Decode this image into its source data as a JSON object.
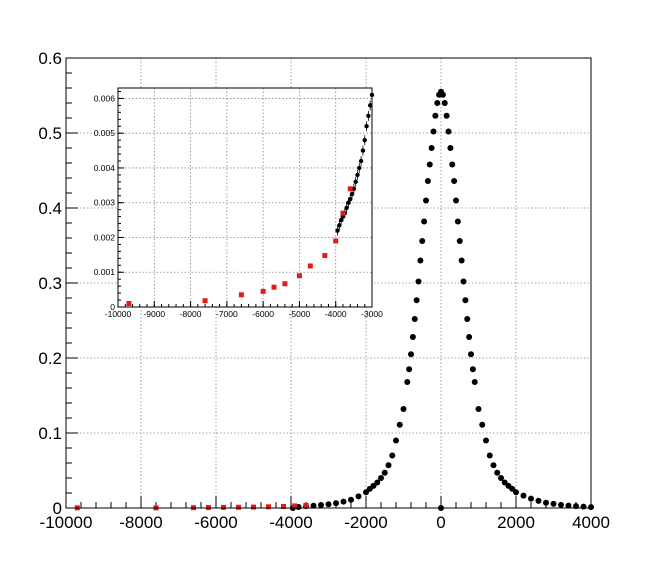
{
  "chart_data": [
    {
      "type": "scatter",
      "title": "",
      "xlabel": "",
      "ylabel": "",
      "xlim": [
        -10000,
        4000
      ],
      "ylim": [
        0,
        0.6
      ],
      "grid": true,
      "x_ticks": [
        -10000,
        -8000,
        -6000,
        -4000,
        -2000,
        0,
        2000,
        4000
      ],
      "x_tick_labels": [
        "-10000",
        "-8000",
        "-6000",
        "-4000",
        "-2000",
        "0",
        "2000",
        "4000"
      ],
      "y_ticks": [
        0,
        0.1,
        0.2,
        0.3,
        0.4,
        0.5,
        0.6
      ],
      "y_tick_labels": [
        "0",
        "0.1",
        "0.2",
        "0.3",
        "0.4",
        "0.5",
        "0.6"
      ],
      "peak": {
        "center": 0,
        "height": 0.555,
        "width": 900
      },
      "series": [
        {
          "color": "#000000",
          "marker": "circle",
          "points": [
            [
              -3950,
              0.0
            ],
            [
              -3800,
              0.0014
            ],
            [
              -3600,
              0.0025
            ],
            [
              -3400,
              0.003
            ],
            [
              -3200,
              0.004
            ],
            [
              -3000,
              0.005
            ],
            [
              -2800,
              0.0065
            ],
            [
              -2600,
              0.0085
            ],
            [
              -2400,
              0.011
            ],
            [
              -2200,
              0.0155
            ],
            [
              -2000,
              0.021
            ],
            [
              -1900,
              0.0255
            ],
            [
              -1800,
              0.0295
            ],
            [
              -1700,
              0.034
            ],
            [
              -1600,
              0.04
            ],
            [
              -1500,
              0.047
            ],
            [
              -1400,
              0.057
            ],
            [
              -1300,
              0.07
            ],
            [
              -1200,
              0.09
            ],
            [
              -1100,
              0.111
            ],
            [
              -1000,
              0.132
            ],
            [
              -900,
              0.168
            ],
            [
              -850,
              0.185
            ],
            [
              -800,
              0.205
            ],
            [
              -750,
              0.228
            ],
            [
              -700,
              0.252
            ],
            [
              -650,
              0.277
            ],
            [
              -600,
              0.302
            ],
            [
              -550,
              0.33
            ],
            [
              -500,
              0.356
            ],
            [
              -450,
              0.382
            ],
            [
              -400,
              0.41
            ],
            [
              -350,
              0.436
            ],
            [
              -300,
              0.458
            ],
            [
              -250,
              0.48
            ],
            [
              -200,
              0.502
            ],
            [
              -150,
              0.523
            ],
            [
              -100,
              0.54
            ],
            [
              -50,
              0.551
            ],
            [
              0,
              0.555
            ],
            [
              50,
              0.551
            ],
            [
              100,
              0.54
            ],
            [
              150,
              0.523
            ],
            [
              200,
              0.502
            ],
            [
              250,
              0.48
            ],
            [
              300,
              0.458
            ],
            [
              350,
              0.436
            ],
            [
              400,
              0.41
            ],
            [
              450,
              0.382
            ],
            [
              500,
              0.356
            ],
            [
              550,
              0.33
            ],
            [
              600,
              0.302
            ],
            [
              650,
              0.277
            ],
            [
              700,
              0.252
            ],
            [
              750,
              0.228
            ],
            [
              800,
              0.205
            ],
            [
              850,
              0.185
            ],
            [
              900,
              0.168
            ],
            [
              1000,
              0.132
            ],
            [
              1100,
              0.111
            ],
            [
              1200,
              0.09
            ],
            [
              1300,
              0.07
            ],
            [
              1400,
              0.057
            ],
            [
              1500,
              0.047
            ],
            [
              1600,
              0.04
            ],
            [
              1700,
              0.034
            ],
            [
              1800,
              0.0295
            ],
            [
              1900,
              0.0255
            ],
            [
              2000,
              0.021
            ],
            [
              2200,
              0.0165
            ],
            [
              2400,
              0.0125
            ],
            [
              2600,
              0.0095
            ],
            [
              2800,
              0.007
            ],
            [
              3000,
              0.0055
            ],
            [
              3200,
              0.0042
            ],
            [
              3400,
              0.0032
            ],
            [
              3600,
              0.0025
            ],
            [
              3800,
              0.0018
            ],
            [
              4000,
              0.0012
            ],
            [
              0,
              0.0
            ]
          ]
        },
        {
          "color": "#e41a1a",
          "marker": "square",
          "points": [
            [
              -9700,
              0.0002
            ],
            [
              -7600,
              0.0002
            ],
            [
              -6600,
              0.0004
            ],
            [
              -6200,
              0.0006
            ],
            [
              -5800,
              0.0008
            ],
            [
              -5400,
              0.001
            ],
            [
              -5000,
              0.0012
            ],
            [
              -4600,
              0.0016
            ],
            [
              -4200,
              0.002
            ],
            [
              -3900,
              0.0028
            ],
            [
              -3600,
              0.0035
            ]
          ]
        }
      ]
    },
    {
      "type": "scatter",
      "title": "",
      "xlabel": "",
      "ylabel": "",
      "xlim": [
        -10000,
        -3000
      ],
      "ylim": [
        0,
        0.0063
      ],
      "grid": true,
      "x_ticks": [
        -10000,
        -9000,
        -8000,
        -7000,
        -6000,
        -5000,
        -4000,
        -3000
      ],
      "x_tick_labels": [
        "-10000",
        "-9000",
        "-8000",
        "-7000",
        "-6000",
        "-5000",
        "-4000",
        "-3000"
      ],
      "y_ticks": [
        0,
        0.001,
        0.002,
        0.003,
        0.004,
        0.005,
        0.006
      ],
      "y_tick_labels": [
        "0",
        "0.001",
        "0.002",
        "0.003",
        "0.004",
        "0.005",
        "0.006"
      ],
      "series": [
        {
          "color": "#000000",
          "marker": "circle",
          "points": [
            [
              -3950,
              0.0022
            ],
            [
              -3900,
              0.00235
            ],
            [
              -3850,
              0.0025
            ],
            [
              -3800,
              0.0026
            ],
            [
              -3750,
              0.0027
            ],
            [
              -3700,
              0.00285
            ],
            [
              -3650,
              0.003
            ],
            [
              -3600,
              0.0031
            ],
            [
              -3550,
              0.00325
            ],
            [
              -3500,
              0.0034
            ],
            [
              -3450,
              0.0036
            ],
            [
              -3400,
              0.0038
            ],
            [
              -3350,
              0.004
            ],
            [
              -3300,
              0.0042
            ],
            [
              -3250,
              0.0045
            ],
            [
              -3200,
              0.0048
            ],
            [
              -3150,
              0.0052
            ],
            [
              -3100,
              0.0055
            ],
            [
              -3050,
              0.0058
            ],
            [
              -3000,
              0.0061
            ]
          ]
        },
        {
          "color": "#e41a1a",
          "marker": "square",
          "points": [
            [
              -9700,
              0.0001
            ],
            [
              -7600,
              0.00018
            ],
            [
              -6600,
              0.00035
            ],
            [
              -6000,
              0.00045
            ],
            [
              -5700,
              0.00057
            ],
            [
              -5400,
              0.00067
            ],
            [
              -5000,
              0.0009
            ],
            [
              -4700,
              0.00118
            ],
            [
              -4300,
              0.00148
            ],
            [
              -4000,
              0.0019
            ],
            [
              -3800,
              0.0027
            ],
            [
              -3600,
              0.0034
            ]
          ]
        }
      ]
    }
  ]
}
